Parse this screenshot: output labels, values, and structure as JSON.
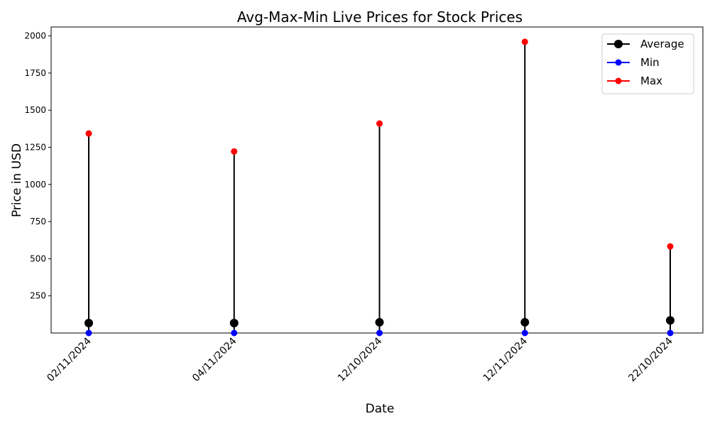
{
  "chart_data": {
    "type": "line",
    "title": "Avg-Max-Min Live Prices for Stock Prices",
    "xlabel": "Date",
    "ylabel": "Price in USD",
    "categories": [
      "02/11/2024",
      "04/11/2024",
      "12/10/2024",
      "12/11/2024",
      "22/10/2024"
    ],
    "ylim": [
      0,
      2060
    ],
    "yticks": [
      250,
      500,
      750,
      1000,
      1250,
      1500,
      1750,
      2000
    ],
    "grid": false,
    "legend_position": "top-right",
    "series": [
      {
        "name": "Average",
        "color": "#000000",
        "values": [
          67,
          67,
          72,
          72,
          85
        ]
      },
      {
        "name": "Min",
        "color": "#0000ff",
        "values": [
          0,
          0,
          0,
          0,
          0
        ]
      },
      {
        "name": "Max",
        "color": "#ff0000",
        "values": [
          1343,
          1222,
          1410,
          1960,
          583
        ]
      }
    ]
  }
}
